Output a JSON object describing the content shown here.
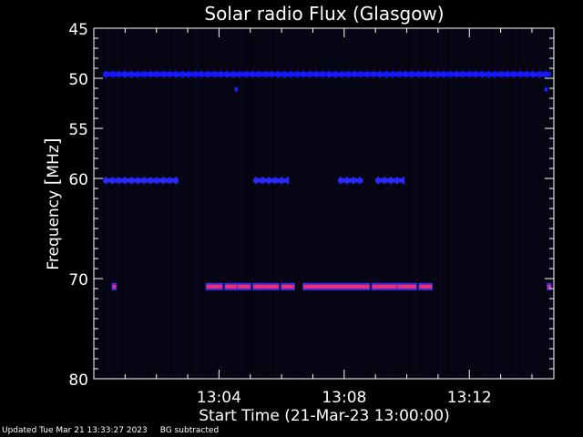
{
  "chart_data": {
    "type": "heatmap",
    "title": "Solar radio Flux (Glasgow)",
    "xlabel": "Start Time (21-Mar-23 13:00:00)",
    "ylabel_prefix": "Frequency ",
    "ylabel_unit": "MHz",
    "y_ticks": [
      45,
      50,
      55,
      60,
      70,
      80
    ],
    "y_tick_labels": [
      "45",
      "50",
      "55",
      "60",
      "70",
      "80"
    ],
    "ylim": [
      45,
      80
    ],
    "y_reversed": true,
    "x_range_minutes": [
      0,
      14.7
    ],
    "x_ticks": [
      4,
      8,
      12
    ],
    "x_tick_labels": [
      "13:04",
      "13:08",
      "13:12"
    ],
    "background_color": "#05050f",
    "bands": [
      {
        "freq": 49.6,
        "segments": [
          [
            0.3,
            14.6
          ]
        ],
        "color": "#1818ff",
        "style": "dotted"
      },
      {
        "freq": 51.1,
        "segments": [
          [
            4.5,
            4.6
          ],
          [
            14.4,
            14.5
          ]
        ],
        "color": "#2020ff",
        "style": "solid"
      },
      {
        "freq": 60.2,
        "segments": [
          [
            0.3,
            2.7
          ],
          [
            5.1,
            6.2
          ],
          [
            7.8,
            8.6
          ],
          [
            9.0,
            9.9
          ]
        ],
        "color": "#2a2aff",
        "style": "dotted"
      },
      {
        "freq": 70.8,
        "segments": [
          [
            0.6,
            0.7
          ],
          [
            3.6,
            4.1
          ],
          [
            4.2,
            4.6
          ],
          [
            4.6,
            5.0
          ],
          [
            5.1,
            5.9
          ],
          [
            6.0,
            6.4
          ],
          [
            6.7,
            8.8
          ],
          [
            8.9,
            9.7
          ],
          [
            9.7,
            10.3
          ],
          [
            10.4,
            10.8
          ],
          [
            14.5,
            14.6
          ]
        ],
        "color": "#ff2a5a",
        "edge": "#3030ff",
        "style": "solid"
      }
    ]
  },
  "footer": {
    "updated": "Updated Tue Mar 21 13:33:27 2023",
    "note": "BG subtracted"
  }
}
